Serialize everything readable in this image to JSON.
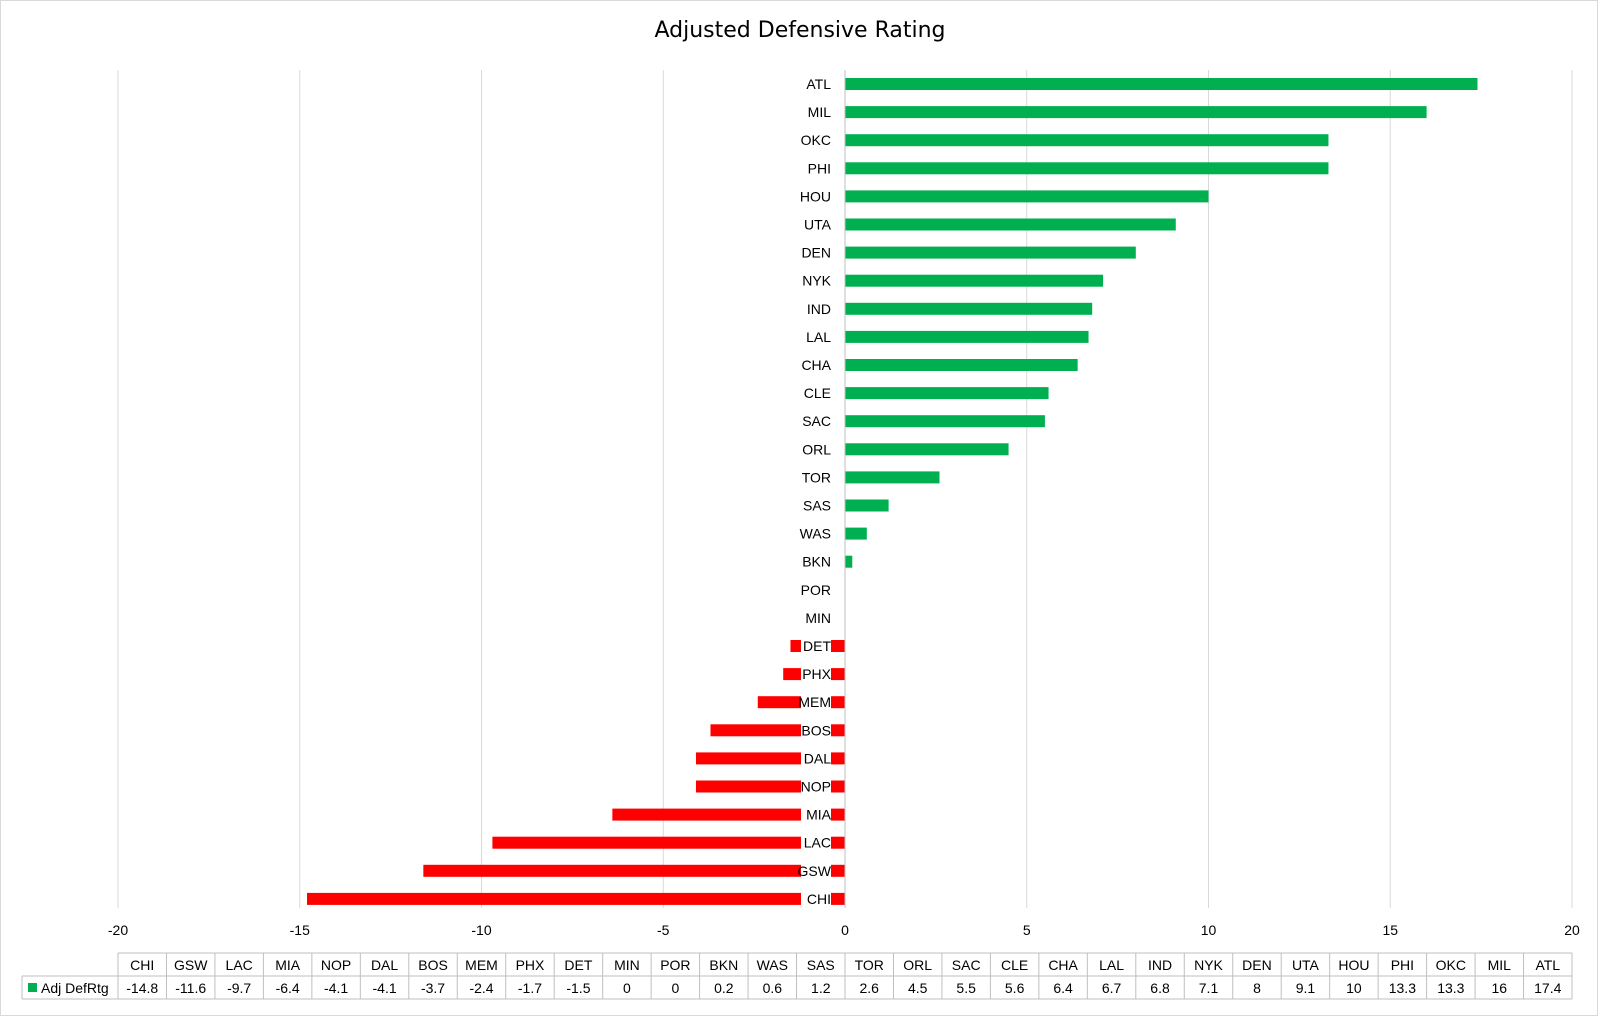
{
  "chart_data": {
    "type": "bar",
    "orientation": "horizontal",
    "title": "Adjusted Defensive Rating",
    "categories": [
      "CHI",
      "GSW",
      "LAC",
      "MIA",
      "NOP",
      "DAL",
      "BOS",
      "MEM",
      "PHX",
      "DET",
      "MIN",
      "POR",
      "BKN",
      "WAS",
      "SAS",
      "TOR",
      "ORL",
      "SAC",
      "CLE",
      "CHA",
      "LAL",
      "IND",
      "NYK",
      "DEN",
      "UTA",
      "HOU",
      "PHI",
      "OKC",
      "MIL",
      "ATL"
    ],
    "series": [
      {
        "name": "Adj DefRtg",
        "values": [
          -14.8,
          -11.6,
          -9.7,
          -6.4,
          -4.1,
          -4.1,
          -3.7,
          -2.4,
          -1.7,
          -1.5,
          0,
          0,
          0.2,
          0.6,
          1.2,
          2.6,
          4.5,
          5.5,
          5.6,
          6.4,
          6.7,
          6.8,
          7.1,
          8,
          9.1,
          10,
          13.3,
          13.3,
          16,
          17.4
        ]
      }
    ],
    "xlim": [
      -20,
      20
    ],
    "x_ticks": [
      -20,
      -15,
      -10,
      -5,
      0,
      5,
      10,
      15,
      20
    ],
    "table_values": [
      "-14.8",
      "-11.6",
      "-9.7",
      "-6.4",
      "-4.1",
      "-4.1",
      "-3.7",
      "-2.4",
      "-1.7",
      "-1.5",
      "0",
      "0",
      "0.2",
      "0.6",
      "1.2",
      "2.6",
      "4.5",
      "5.5",
      "5.6",
      "6.4",
      "6.7",
      "6.8",
      "7.1",
      "8",
      "9.1",
      "10",
      "13.3",
      "13.3",
      "16",
      "17.4"
    ],
    "grid": "vertical",
    "data_table": true,
    "colors": {
      "positive": "#00b050",
      "negative": "#ff0000",
      "grid": "#d9d9d9",
      "axis": "#bfbfbf"
    }
  }
}
